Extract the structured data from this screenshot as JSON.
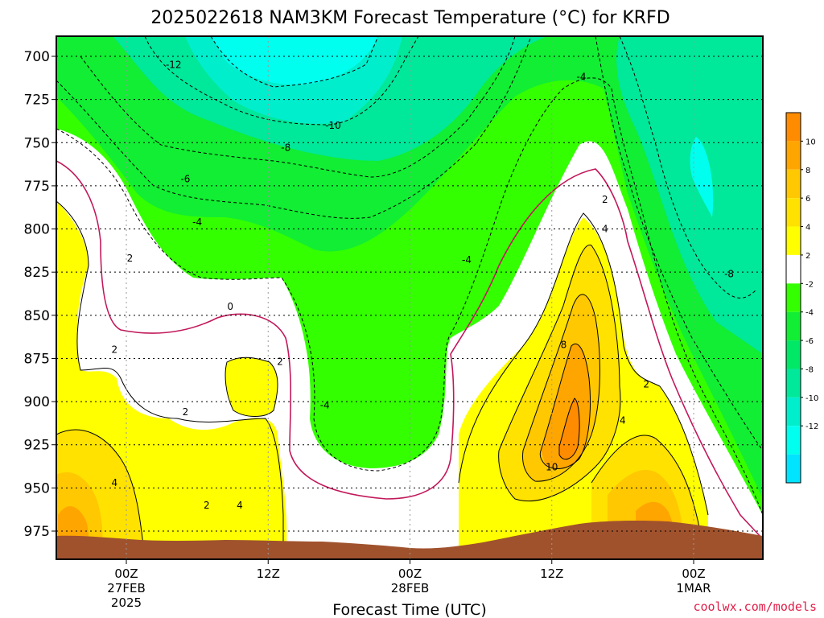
{
  "chart_data": {
    "type": "heatmap",
    "title": "2025022618 NAM3KM Forecast Temperature (°C) for KRFD",
    "xlabel": "Forecast Time (UTC)",
    "ylabel": "",
    "credit": "coolwx.com/models",
    "y_axis": {
      "ticks": [
        "700",
        "725",
        "750",
        "775",
        "800",
        "825",
        "850",
        "875",
        "900",
        "925",
        "950",
        "975"
      ],
      "values": [
        700,
        725,
        750,
        775,
        800,
        825,
        850,
        875,
        900,
        925,
        950,
        975
      ],
      "inverted": true,
      "grid": true
    },
    "x_axis": {
      "range_hours": [
        -6,
        54
      ],
      "ticks": [
        {
          "hour": 0,
          "line1": "00Z",
          "line2": "27FEB",
          "line3": "2025"
        },
        {
          "hour": 12,
          "line1": "12Z",
          "line2": "",
          "line3": ""
        },
        {
          "hour": 24,
          "line1": "00Z",
          "line2": "28FEB",
          "line3": ""
        },
        {
          "hour": 36,
          "line1": "12Z",
          "line2": "",
          "line3": ""
        },
        {
          "hour": 48,
          "line1": "00Z",
          "line2": "1MAR",
          "line3": ""
        }
      ],
      "grid": true
    },
    "colorbar": {
      "labels": [
        "10",
        "8",
        "6",
        "4",
        "2",
        "-2",
        "-4",
        "-6",
        "-8",
        "-10",
        "-12"
      ],
      "bins": [
        {
          "label": "",
          "color": "#ff8c00"
        },
        {
          "label": "",
          "color": "#ffa500"
        },
        {
          "label": "",
          "color": "#ffc800"
        },
        {
          "label": "",
          "color": "#ffe200"
        },
        {
          "label": "",
          "color": "#ffff00"
        },
        {
          "label": "",
          "color": "#ffffff"
        },
        {
          "label": "",
          "color": "#33ff00"
        },
        {
          "label": "",
          "color": "#11ee33"
        },
        {
          "label": "",
          "color": "#00e866"
        },
        {
          "label": "",
          "color": "#00e899"
        },
        {
          "label": "",
          "color": "#00eecc"
        },
        {
          "label": "",
          "color": "#00ffee"
        },
        {
          "label": "",
          "color": "#00e4ff"
        }
      ]
    },
    "contour_labels": [
      {
        "text": "-12",
        "hour": 4.0,
        "hPa": 705
      },
      {
        "text": "-10",
        "hour": 17.5,
        "hPa": 740
      },
      {
        "text": "-8",
        "hour": 13.5,
        "hPa": 753
      },
      {
        "text": "-6",
        "hour": 5.0,
        "hPa": 771
      },
      {
        "text": "-4",
        "hour": 6.0,
        "hPa": 796
      },
      {
        "text": "-4",
        "hour": 38.5,
        "hPa": 712
      },
      {
        "text": "-4",
        "hour": 28.8,
        "hPa": 818
      },
      {
        "text": "-4",
        "hour": 16.8,
        "hPa": 902
      },
      {
        "text": "-8",
        "hour": 51.0,
        "hPa": 826
      },
      {
        "text": "2",
        "hour": 0.3,
        "hPa": 817
      },
      {
        "text": "0",
        "hour": 8.8,
        "hPa": 845
      },
      {
        "text": "2",
        "hour": -1.0,
        "hPa": 870
      },
      {
        "text": "2",
        "hour": 13.0,
        "hPa": 877
      },
      {
        "text": "2",
        "hour": 5.0,
        "hPa": 906
      },
      {
        "text": "4",
        "hour": -1.0,
        "hPa": 947
      },
      {
        "text": "2",
        "hour": 6.8,
        "hPa": 960
      },
      {
        "text": "4",
        "hour": 9.6,
        "hPa": 960
      },
      {
        "text": "2",
        "hour": 40.5,
        "hPa": 783
      },
      {
        "text": "4",
        "hour": 40.5,
        "hPa": 800
      },
      {
        "text": "8",
        "hour": 37.0,
        "hPa": 867
      },
      {
        "text": "10",
        "hour": 36.0,
        "hPa": 938
      },
      {
        "text": "4",
        "hour": 42.0,
        "hPa": 911
      },
      {
        "text": "2",
        "hour": 44.0,
        "hPa": 890
      }
    ]
  }
}
